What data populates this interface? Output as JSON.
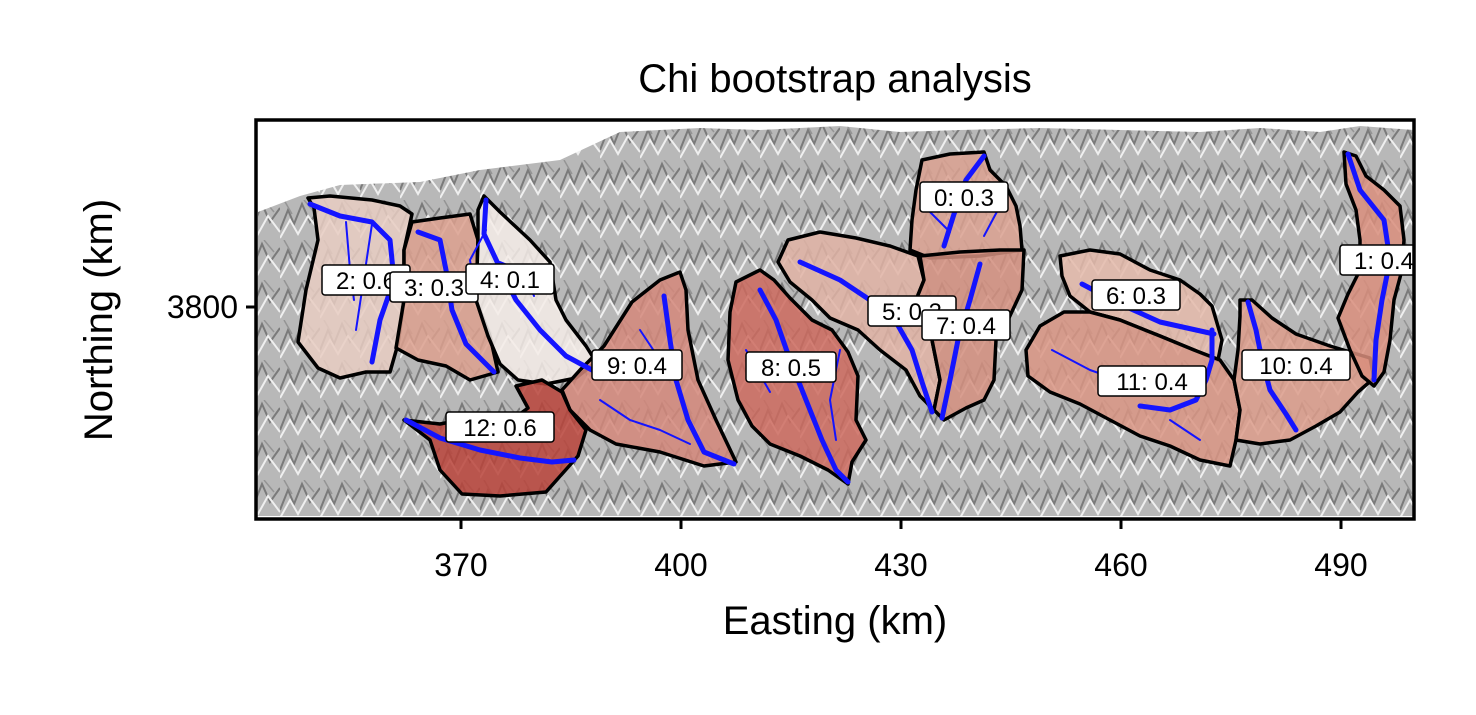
{
  "chart_data": {
    "type": "map",
    "title": "Chi bootstrap analysis",
    "xlabel": "Easting (km)",
    "ylabel": "Northing (km)",
    "x_ticks": [
      370,
      400,
      430,
      460,
      490
    ],
    "y_ticks": [
      3800
    ],
    "background": "hillshade relief",
    "basin_fill_colormap": "Reds",
    "river_color": "#1414ff",
    "basins": [
      {
        "id": 0,
        "label": "0: 0.3",
        "value": 0.3
      },
      {
        "id": 1,
        "label": "1: 0.4",
        "value": 0.4
      },
      {
        "id": 2,
        "label": "2: 0.6",
        "value": 0.6
      },
      {
        "id": 3,
        "label": "3: 0.3",
        "value": 0.3
      },
      {
        "id": 4,
        "label": "4: 0.1",
        "value": 0.1
      },
      {
        "id": 5,
        "label": "5: 0.3",
        "value": 0.3
      },
      {
        "id": 6,
        "label": "6: 0.3",
        "value": 0.3
      },
      {
        "id": 7,
        "label": "7: 0.4",
        "value": 0.4
      },
      {
        "id": 8,
        "label": "8: 0.5",
        "value": 0.5
      },
      {
        "id": 9,
        "label": "9: 0.4",
        "value": 0.4
      },
      {
        "id": 10,
        "label": "10: 0.4",
        "value": 0.4
      },
      {
        "id": 11,
        "label": "11: 0.4",
        "value": 0.4
      },
      {
        "id": 12,
        "label": "12: 0.6",
        "value": 0.6
      }
    ]
  }
}
